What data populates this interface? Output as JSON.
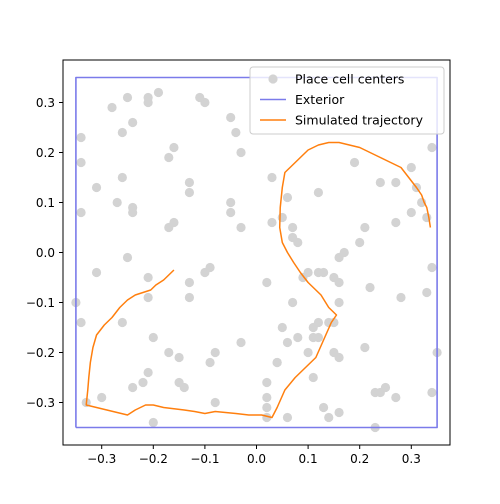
{
  "chart_data": {
    "type": "scatter",
    "title": "",
    "xlabel": "",
    "ylabel": "",
    "xlim": [
      -0.375,
      0.375
    ],
    "ylim": [
      -0.385,
      0.385
    ],
    "xticks": [
      -0.3,
      -0.2,
      -0.1,
      0.0,
      0.1,
      0.2,
      0.3
    ],
    "xtick_labels": [
      "−0.3",
      "−0.2",
      "−0.1",
      "0.0",
      "0.1",
      "0.2",
      "0.3"
    ],
    "yticks": [
      -0.3,
      -0.2,
      -0.1,
      0.0,
      0.1,
      0.2,
      0.3
    ],
    "ytick_labels": [
      "−0.3",
      "−0.2",
      "−0.1",
      "0.0",
      "0.1",
      "0.2",
      "0.3"
    ],
    "grid": false,
    "legend": {
      "placement": "upper-right",
      "entries": [
        {
          "label": "Place cell centers",
          "marker": "circle",
          "color": "#d3d3d3"
        },
        {
          "label": "Exterior",
          "marker": "line",
          "color": "#7b7bea"
        },
        {
          "label": "Simulated trajectory",
          "marker": "line",
          "color": "#ff7f0e"
        }
      ]
    },
    "series": [
      {
        "name": "Place cell centers",
        "type": "scatter",
        "color": "#d3d3d3",
        "points": [
          [
            -0.28,
            0.29
          ],
          [
            -0.25,
            0.31
          ],
          [
            -0.21,
            0.31
          ],
          [
            -0.21,
            0.3
          ],
          [
            -0.19,
            0.32
          ],
          [
            -0.1,
            0.3
          ],
          [
            -0.11,
            0.31
          ],
          [
            -0.05,
            0.27
          ],
          [
            -0.04,
            0.24
          ],
          [
            -0.26,
            0.24
          ],
          [
            -0.24,
            0.26
          ],
          [
            -0.34,
            0.23
          ],
          [
            -0.34,
            0.18
          ],
          [
            -0.16,
            0.21
          ],
          [
            -0.17,
            0.19
          ],
          [
            -0.03,
            0.2
          ],
          [
            -0.26,
            0.15
          ],
          [
            -0.31,
            0.13
          ],
          [
            -0.27,
            0.1
          ],
          [
            -0.24,
            0.08
          ],
          [
            -0.24,
            0.09
          ],
          [
            -0.34,
            0.08
          ],
          [
            -0.13,
            0.14
          ],
          [
            -0.13,
            0.12
          ],
          [
            -0.05,
            0.1
          ],
          [
            -0.05,
            0.08
          ],
          [
            -0.03,
            0.05
          ],
          [
            -0.16,
            0.06
          ],
          [
            -0.17,
            0.05
          ],
          [
            -0.25,
            -0.01
          ],
          [
            -0.31,
            -0.04
          ],
          [
            -0.35,
            -0.1
          ],
          [
            -0.34,
            -0.14
          ],
          [
            -0.26,
            -0.14
          ],
          [
            -0.21,
            -0.05
          ],
          [
            -0.21,
            -0.09
          ],
          [
            -0.13,
            -0.06
          ],
          [
            -0.13,
            -0.09
          ],
          [
            -0.1,
            -0.04
          ],
          [
            -0.09,
            -0.03
          ],
          [
            -0.2,
            -0.17
          ],
          [
            -0.17,
            -0.2
          ],
          [
            -0.15,
            -0.21
          ],
          [
            -0.21,
            -0.24
          ],
          [
            -0.24,
            -0.27
          ],
          [
            -0.22,
            -0.26
          ],
          [
            -0.15,
            -0.26
          ],
          [
            -0.14,
            -0.27
          ],
          [
            -0.09,
            -0.22
          ],
          [
            -0.08,
            -0.2
          ],
          [
            -0.03,
            -0.18
          ],
          [
            -0.08,
            -0.3
          ],
          [
            -0.3,
            -0.29
          ],
          [
            -0.33,
            -0.3
          ],
          [
            -0.2,
            -0.34
          ],
          [
            0.03,
            0.15
          ],
          [
            0.06,
            0.11
          ],
          [
            0.07,
            0.05
          ],
          [
            0.08,
            0.02
          ],
          [
            0.07,
            0.03
          ],
          [
            0.03,
            0.06
          ],
          [
            0.05,
            0.07
          ],
          [
            0.12,
            0.12
          ],
          [
            0.19,
            0.18
          ],
          [
            0.24,
            0.14
          ],
          [
            0.27,
            0.14
          ],
          [
            0.3,
            0.17
          ],
          [
            0.31,
            0.13
          ],
          [
            0.34,
            0.21
          ],
          [
            0.32,
            0.1
          ],
          [
            0.3,
            0.08
          ],
          [
            0.33,
            0.07
          ],
          [
            0.27,
            0.06
          ],
          [
            0.21,
            0.05
          ],
          [
            0.2,
            0.02
          ],
          [
            0.09,
            -0.05
          ],
          [
            0.1,
            -0.04
          ],
          [
            0.12,
            -0.04
          ],
          [
            0.13,
            -0.04
          ],
          [
            0.16,
            -0.01
          ],
          [
            0.17,
            0.0
          ],
          [
            0.15,
            -0.05
          ],
          [
            0.16,
            -0.06
          ],
          [
            0.16,
            -0.1
          ],
          [
            0.15,
            -0.14
          ],
          [
            0.11,
            -0.15
          ],
          [
            0.12,
            -0.17
          ],
          [
            0.12,
            -0.14
          ],
          [
            0.14,
            -0.14
          ],
          [
            0.07,
            -0.1
          ],
          [
            0.02,
            -0.06
          ],
          [
            0.05,
            -0.15
          ],
          [
            0.06,
            -0.18
          ],
          [
            0.08,
            -0.17
          ],
          [
            0.11,
            -0.17
          ],
          [
            0.15,
            -0.2
          ],
          [
            0.1,
            -0.2
          ],
          [
            0.04,
            -0.22
          ],
          [
            0.11,
            -0.25
          ],
          [
            0.16,
            -0.21
          ],
          [
            0.21,
            -0.19
          ],
          [
            0.22,
            -0.07
          ],
          [
            0.28,
            -0.09
          ],
          [
            0.34,
            -0.03
          ],
          [
            0.33,
            -0.08
          ],
          [
            0.35,
            -0.2
          ],
          [
            0.34,
            -0.28
          ],
          [
            0.02,
            -0.26
          ],
          [
            0.02,
            -0.29
          ],
          [
            0.02,
            -0.31
          ],
          [
            0.02,
            -0.33
          ],
          [
            0.06,
            -0.33
          ],
          [
            0.13,
            -0.31
          ],
          [
            0.14,
            -0.33
          ],
          [
            0.16,
            -0.32
          ],
          [
            0.23,
            -0.28
          ],
          [
            0.24,
            -0.28
          ],
          [
            0.25,
            -0.27
          ],
          [
            0.27,
            -0.29
          ],
          [
            0.23,
            -0.35
          ],
          [
            0.04,
            -0.22
          ]
        ]
      },
      {
        "name": "Exterior",
        "type": "line",
        "color": "#7b7bea",
        "points": [
          [
            -0.35,
            -0.35
          ],
          [
            0.35,
            -0.35
          ],
          [
            0.35,
            0.35
          ],
          [
            -0.35,
            0.35
          ],
          [
            -0.35,
            -0.35
          ]
        ]
      },
      {
        "name": "Simulated trajectory",
        "type": "line",
        "color": "#ff7f0e",
        "points": [
          [
            -0.16,
            -0.035
          ],
          [
            -0.17,
            -0.045
          ],
          [
            -0.18,
            -0.055
          ],
          [
            -0.195,
            -0.065
          ],
          [
            -0.205,
            -0.075
          ],
          [
            -0.22,
            -0.08
          ],
          [
            -0.235,
            -0.085
          ],
          [
            -0.25,
            -0.095
          ],
          [
            -0.265,
            -0.11
          ],
          [
            -0.28,
            -0.13
          ],
          [
            -0.295,
            -0.145
          ],
          [
            -0.31,
            -0.165
          ],
          [
            -0.317,
            -0.19
          ],
          [
            -0.322,
            -0.22
          ],
          [
            -0.325,
            -0.25
          ],
          [
            -0.327,
            -0.275
          ],
          [
            -0.33,
            -0.305
          ],
          [
            -0.31,
            -0.31
          ],
          [
            -0.29,
            -0.315
          ],
          [
            -0.27,
            -0.32
          ],
          [
            -0.25,
            -0.325
          ],
          [
            -0.235,
            -0.315
          ],
          [
            -0.215,
            -0.305
          ],
          [
            -0.2,
            -0.305
          ],
          [
            -0.18,
            -0.31
          ],
          [
            -0.14,
            -0.315
          ],
          [
            -0.12,
            -0.318
          ],
          [
            -0.1,
            -0.322
          ],
          [
            -0.08,
            -0.318
          ],
          [
            -0.06,
            -0.32
          ],
          [
            -0.04,
            -0.322
          ],
          [
            -0.015,
            -0.325
          ],
          [
            0.01,
            -0.325
          ],
          [
            0.03,
            -0.33
          ],
          [
            0.04,
            -0.31
          ],
          [
            0.055,
            -0.275
          ],
          [
            0.075,
            -0.25
          ],
          [
            0.095,
            -0.23
          ],
          [
            0.115,
            -0.21
          ],
          [
            0.13,
            -0.175
          ],
          [
            0.145,
            -0.14
          ],
          [
            0.155,
            -0.125
          ],
          [
            0.14,
            -0.11
          ],
          [
            0.125,
            -0.085
          ],
          [
            0.1,
            -0.06
          ],
          [
            0.085,
            -0.04
          ],
          [
            0.072,
            -0.02
          ],
          [
            0.06,
            0.0
          ],
          [
            0.05,
            0.02
          ],
          [
            0.045,
            0.05
          ],
          [
            0.046,
            0.09
          ],
          [
            0.05,
            0.13
          ],
          [
            0.055,
            0.16
          ],
          [
            0.07,
            0.175
          ],
          [
            0.085,
            0.19
          ],
          [
            0.1,
            0.205
          ],
          [
            0.12,
            0.215
          ],
          [
            0.14,
            0.22
          ],
          [
            0.16,
            0.22
          ],
          [
            0.18,
            0.215
          ],
          [
            0.2,
            0.21
          ],
          [
            0.22,
            0.2
          ],
          [
            0.24,
            0.19
          ],
          [
            0.26,
            0.18
          ],
          [
            0.28,
            0.17
          ],
          [
            0.295,
            0.15
          ],
          [
            0.31,
            0.13
          ],
          [
            0.32,
            0.115
          ],
          [
            0.325,
            0.1
          ],
          [
            0.33,
            0.09
          ],
          [
            0.334,
            0.07
          ],
          [
            0.337,
            0.05
          ]
        ]
      }
    ]
  }
}
